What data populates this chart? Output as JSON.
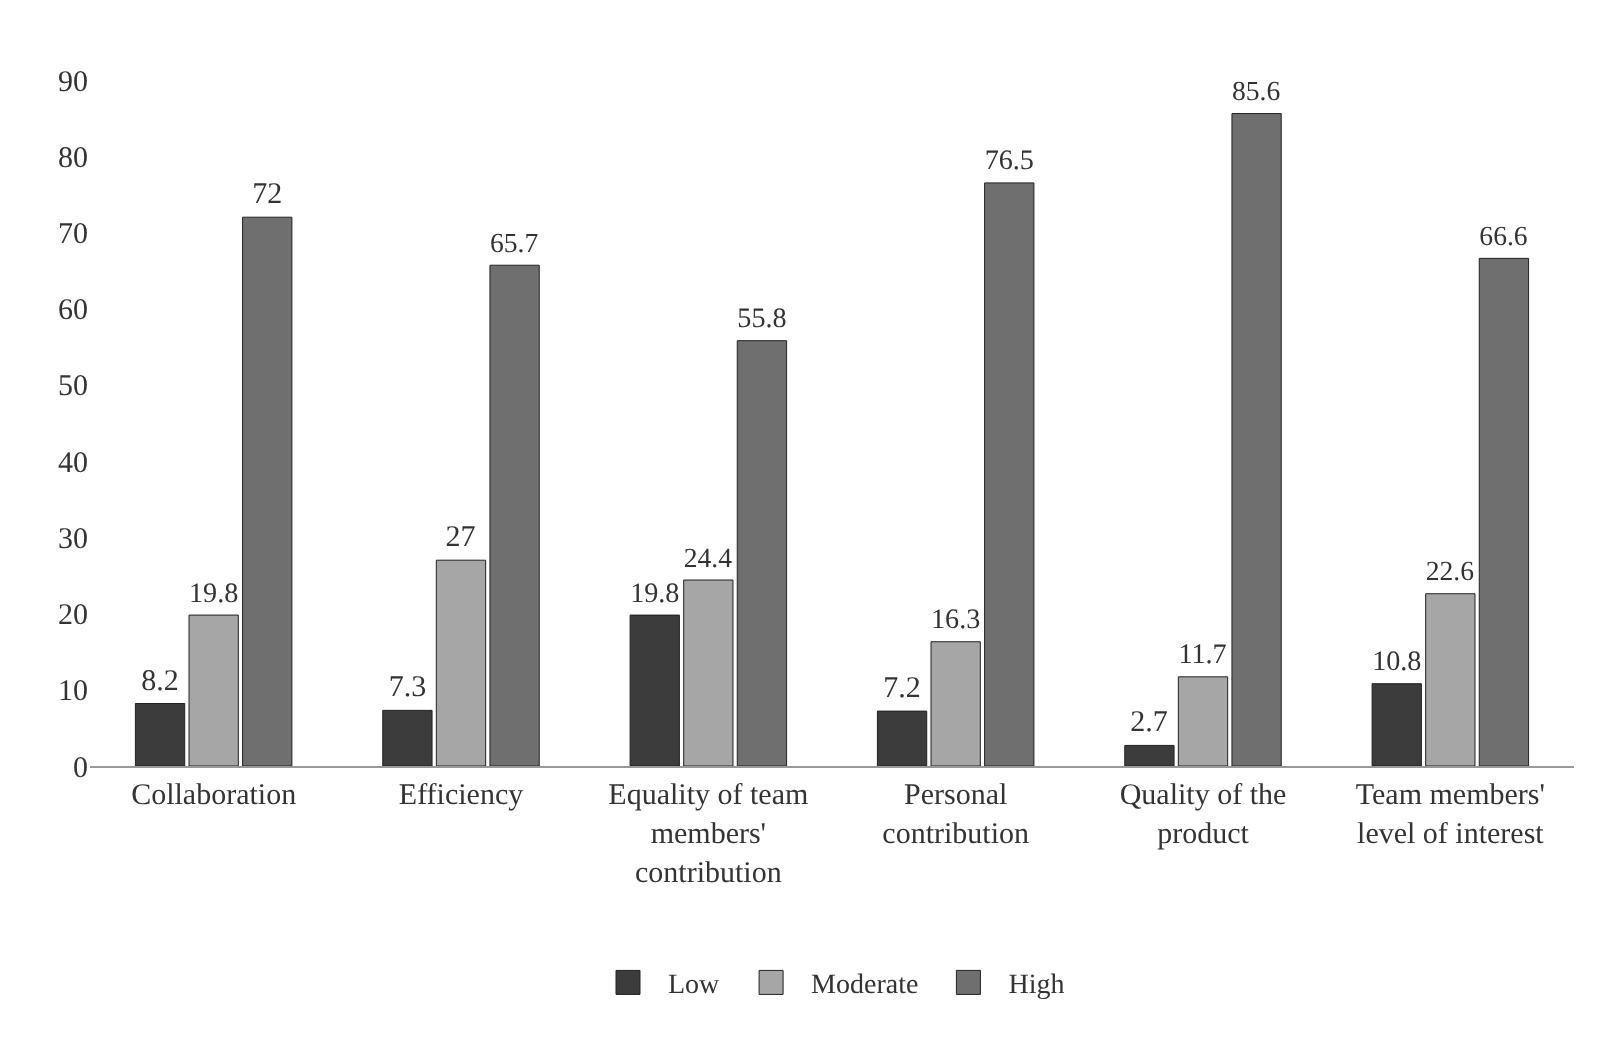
{
  "chart_data": {
    "type": "bar",
    "categories": [
      "Collaboration",
      "Efficiency",
      "Equality of team members' contribution",
      "Personal contribution",
      "Quality of the product",
      "Team members' level of interest"
    ],
    "series": [
      {
        "name": "Low",
        "color": "#3c3c3c",
        "values": [
          8.2,
          7.3,
          19.8,
          7.2,
          2.7,
          10.8
        ]
      },
      {
        "name": "Moderate",
        "color": "#a6a6a6",
        "values": [
          19.8,
          27,
          24.4,
          16.3,
          11.7,
          22.6
        ]
      },
      {
        "name": "High",
        "color": "#6f6f6f",
        "values": [
          72,
          65.7,
          55.8,
          76.5,
          85.6,
          66.6
        ]
      }
    ],
    "ylim": [
      0,
      90
    ],
    "yticks": [
      0,
      10,
      20,
      30,
      40,
      50,
      60,
      70,
      80,
      90
    ],
    "grid": false,
    "legend": "bottom",
    "data_labels": true
  }
}
